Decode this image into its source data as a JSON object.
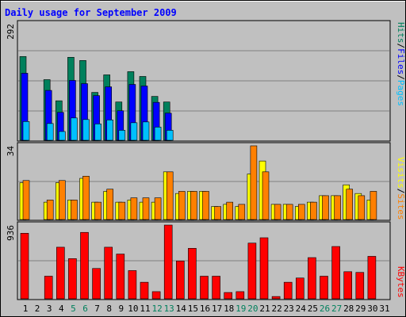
{
  "chart_data": [
    {
      "type": "bar",
      "panel": "hits-files-pages",
      "title": "Daily usage for September 2009",
      "ymax_label": "292",
      "ymax": 292,
      "categories": [
        "1",
        "2",
        "3",
        "4",
        "5",
        "6",
        "7",
        "8",
        "9",
        "10",
        "11",
        "12",
        "13",
        "14",
        "15",
        "16",
        "17",
        "18",
        "19",
        "20",
        "21",
        "22",
        "23",
        "24",
        "25",
        "26",
        "27",
        "28",
        "29",
        "30",
        "31"
      ],
      "weekend_days": [
        "5",
        "6",
        "12",
        "13",
        "19",
        "20",
        "26",
        "27"
      ],
      "axis_side_labels": {
        "pages": "Pages",
        "files": "Files",
        "hits": "Hits",
        "separator": "/"
      },
      "series": [
        {
          "name": "Hits",
          "color": "#00805c",
          "values": [
            210,
            0,
            152,
            99,
            208,
            200,
            120,
            164,
            96,
            172,
            160,
            110,
            96,
            0,
            0,
            0,
            0,
            0,
            0,
            0,
            0,
            0,
            0,
            0,
            0,
            0,
            0,
            0,
            0,
            0,
            0
          ]
        },
        {
          "name": "Files",
          "color": "#0000ff",
          "values": [
            168,
            0,
            125,
            70,
            150,
            142,
            112,
            134,
            74,
            140,
            136,
            95,
            68,
            0,
            0,
            0,
            0,
            0,
            0,
            0,
            0,
            0,
            0,
            0,
            0,
            0,
            0,
            0,
            0,
            0,
            0
          ]
        },
        {
          "name": "Pages",
          "color": "#00c0ff",
          "values": [
            47,
            0,
            42,
            22,
            56,
            52,
            41,
            51,
            25,
            44,
            46,
            33,
            25,
            0,
            0,
            0,
            0,
            0,
            0,
            0,
            0,
            0,
            0,
            0,
            0,
            0,
            0,
            0,
            0,
            0,
            0
          ]
        }
      ]
    },
    {
      "type": "bar",
      "panel": "visits-sites",
      "ymax_label": "34",
      "ymax": 34,
      "axis_side_labels": {
        "sites": "Sites",
        "visits": "Visits",
        "separator": "/"
      },
      "series": [
        {
          "name": "Visits",
          "color": "#ffff00",
          "values": [
            17,
            0,
            8,
            17,
            9,
            19,
            8,
            13,
            8,
            9,
            8,
            8,
            22,
            12,
            13,
            13,
            6,
            7,
            6,
            21,
            27,
            7,
            7,
            6,
            8,
            11,
            11,
            16,
            12,
            9,
            0
          ]
        },
        {
          "name": "Sites",
          "color": "#ff8000",
          "values": [
            18,
            0,
            9,
            18,
            9,
            20,
            8,
            14,
            8,
            10,
            10,
            10,
            22,
            13,
            13,
            13,
            6,
            8,
            7,
            34,
            22,
            7,
            7,
            7,
            8,
            11,
            11,
            14,
            11,
            13,
            0
          ]
        }
      ]
    },
    {
      "type": "bar",
      "panel": "kbytes",
      "ymax_label": "936",
      "ymax": 936,
      "axis_side_labels": {
        "kbytes": "KBytes"
      },
      "series": [
        {
          "name": "KBytes",
          "color": "#ff0000",
          "values": [
            832,
            0,
            287,
            655,
            510,
            843,
            385,
            655,
            568,
            358,
            210,
            91,
            936,
            480,
            641,
            287,
            287,
            80,
            91,
            707,
            775,
            29,
            210,
            264,
            523,
            287,
            664,
            344,
            335,
            539,
            0
          ]
        }
      ]
    }
  ]
}
